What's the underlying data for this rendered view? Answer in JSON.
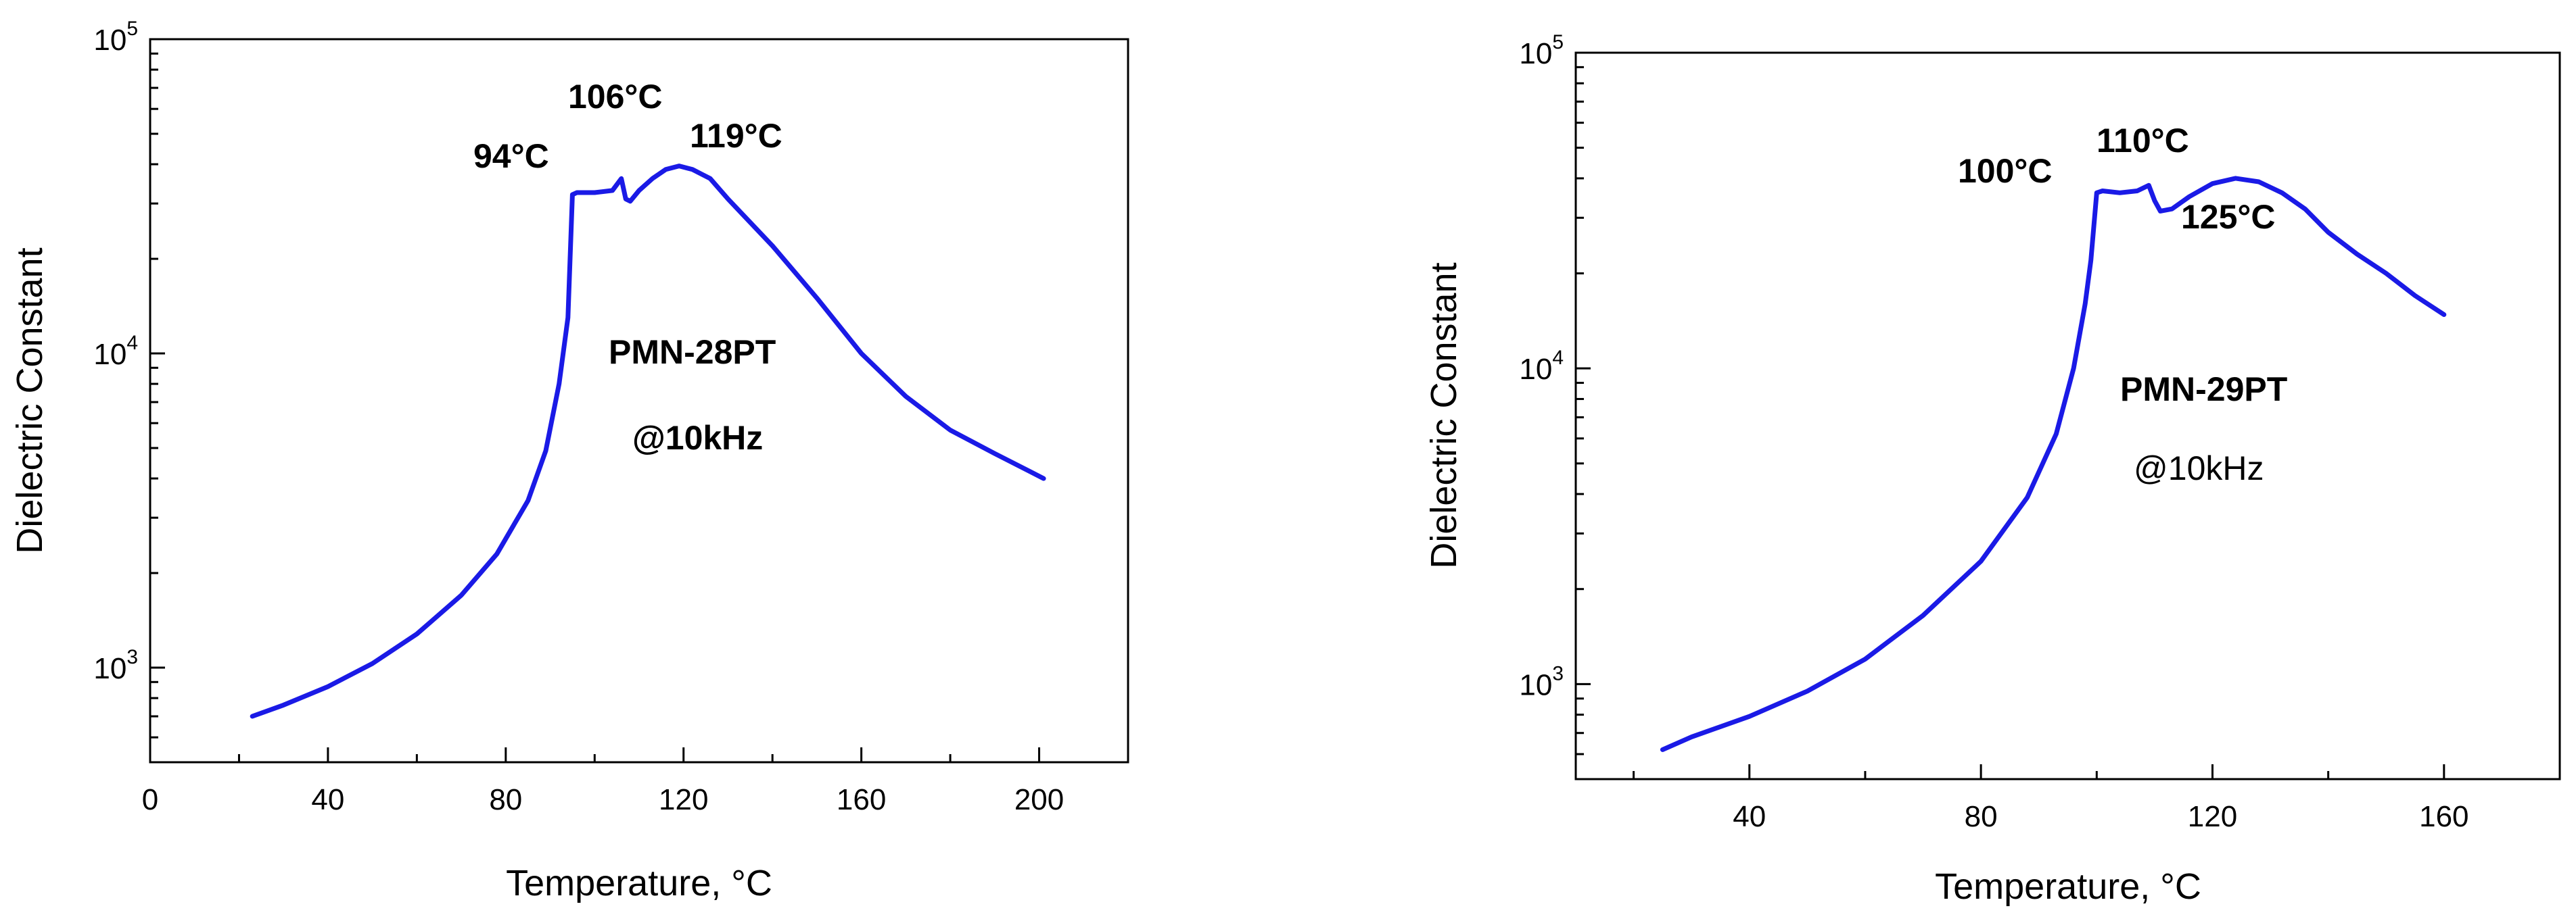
{
  "colors": {
    "series": "#1a1ae6",
    "axes": "#000000"
  },
  "chart_data": [
    {
      "type": "line",
      "title": "",
      "xlabel": "Temperature, °C",
      "ylabel": "Dielectric Constant",
      "xlim": [
        0,
        220
      ],
      "ylim": [
        500,
        100000
      ],
      "yscale": "log",
      "grid": false,
      "x_ticks": [
        0,
        40,
        80,
        120,
        160,
        200
      ],
      "y_ticks": [
        {
          "value": 1000,
          "base": "10",
          "exp": "3"
        },
        {
          "value": 10000,
          "base": "10",
          "exp": "4"
        },
        {
          "value": 100000,
          "base": "10",
          "exp": "5"
        }
      ],
      "series": [
        {
          "x": [
            23,
            30,
            40,
            50,
            60,
            70,
            78,
            85,
            89,
            92,
            94,
            95,
            96,
            100,
            104,
            106,
            107,
            108,
            110,
            113,
            116,
            119,
            122,
            126,
            130,
            140,
            150,
            160,
            170,
            180,
            190,
            201
          ],
          "y": [
            700,
            760,
            870,
            1030,
            1280,
            1700,
            2300,
            3400,
            4900,
            8000,
            13000,
            32000,
            32500,
            32500,
            33000,
            36000,
            31000,
            30500,
            33000,
            36000,
            38500,
            39500,
            38500,
            36000,
            31000,
            22000,
            15000,
            10000,
            7300,
            5700,
            4800,
            4000
          ]
        }
      ],
      "annotations": [
        {
          "text": "94°C",
          "x": 94,
          "y": 32000
        },
        {
          "text": "106°C",
          "x": 106,
          "y": 36000
        },
        {
          "text": "119°C",
          "x": 119,
          "y": 39500
        }
      ],
      "notes": [
        "PMN-28PT",
        "@10kHz"
      ]
    },
    {
      "type": "line",
      "title": "",
      "xlabel": "Temperature, °C",
      "ylabel": "Dielectric Constant",
      "xlim": [
        10,
        180
      ],
      "ylim": [
        500,
        100000
      ],
      "yscale": "log",
      "grid": false,
      "x_ticks": [
        40,
        80,
        120,
        160
      ],
      "y_ticks": [
        {
          "value": 1000,
          "base": "10",
          "exp": "3"
        },
        {
          "value": 10000,
          "base": "10",
          "exp": "4"
        },
        {
          "value": 100000,
          "base": "10",
          "exp": "5"
        }
      ],
      "series": [
        {
          "x": [
            25,
            30,
            40,
            50,
            60,
            70,
            80,
            88,
            93,
            96,
            98,
            99,
            100,
            101,
            104,
            107,
            109,
            110,
            111,
            113,
            116,
            120,
            124,
            128,
            132,
            136,
            140,
            145,
            150,
            155,
            160
          ],
          "y": [
            620,
            680,
            790,
            950,
            1200,
            1650,
            2450,
            3900,
            6200,
            10000,
            16000,
            22000,
            36000,
            36500,
            36000,
            36500,
            38000,
            34000,
            31500,
            32000,
            35000,
            38500,
            40000,
            39000,
            36000,
            32000,
            27000,
            23000,
            20000,
            17000,
            14800
          ]
        }
      ],
      "annotations": [
        {
          "text": "100°C",
          "x": 100,
          "y": 36000
        },
        {
          "text": "110°C",
          "x": 110,
          "y": 38000
        },
        {
          "text": "125°C",
          "x": 125,
          "y": 32000
        }
      ],
      "notes": [
        "PMN-29PT",
        "@10kHz"
      ]
    }
  ]
}
